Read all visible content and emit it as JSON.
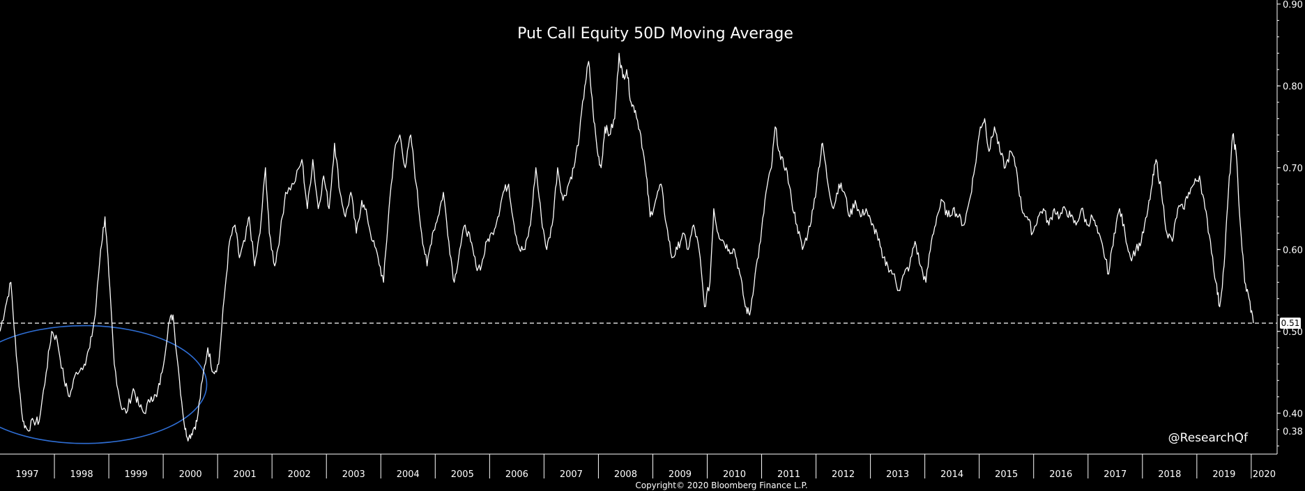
{
  "chart_data": {
    "type": "line",
    "title": "Put Call Equity 50D Moving Average",
    "x_range": [
      1997.0,
      2020.45
    ],
    "ylim": [
      0.35,
      0.905
    ],
    "y_ticks": [
      0.4,
      0.5,
      0.6,
      0.7,
      0.8,
      0.9
    ],
    "y_tick_labels": [
      "0.40",
      "0.50",
      "0.60",
      "0.70",
      "0.80",
      "0.90"
    ],
    "low_label": "0.38",
    "last_value": 0.51,
    "last_value_label": "0.51",
    "x_labels": [
      "1997",
      "1998",
      "1999",
      "2000",
      "2001",
      "2002",
      "2003",
      "2004",
      "2005",
      "2006",
      "2007",
      "2008",
      "2009",
      "2010",
      "2011",
      "2012",
      "2013",
      "2014",
      "2015",
      "2016",
      "2017",
      "2018",
      "2019",
      "2020"
    ],
    "reference_line": {
      "value": 0.51,
      "style": "dashed"
    },
    "highlight_ellipse": {
      "x_center": 1998.55,
      "y_center": 0.435,
      "x_radius": 2.25,
      "y_radius": 0.072,
      "color": "#2f6fd6"
    },
    "series": [
      {
        "line_color": "#ffffff",
        "points": [
          [
            1997.0,
            0.5
          ],
          [
            1997.1,
            0.53
          ],
          [
            1997.2,
            0.56
          ],
          [
            1997.3,
            0.47
          ],
          [
            1997.42,
            0.39
          ],
          [
            1997.5,
            0.38
          ],
          [
            1997.62,
            0.39
          ],
          [
            1997.72,
            0.39
          ],
          [
            1997.85,
            0.45
          ],
          [
            1997.95,
            0.5
          ],
          [
            1998.05,
            0.49
          ],
          [
            1998.18,
            0.44
          ],
          [
            1998.28,
            0.42
          ],
          [
            1998.4,
            0.45
          ],
          [
            1998.55,
            0.46
          ],
          [
            1998.65,
            0.48
          ],
          [
            1998.75,
            0.52
          ],
          [
            1998.85,
            0.6
          ],
          [
            1998.93,
            0.64
          ],
          [
            1999.0,
            0.57
          ],
          [
            1999.1,
            0.46
          ],
          [
            1999.22,
            0.41
          ],
          [
            1999.32,
            0.4
          ],
          [
            1999.45,
            0.43
          ],
          [
            1999.55,
            0.41
          ],
          [
            1999.65,
            0.4
          ],
          [
            1999.78,
            0.42
          ],
          [
            1999.88,
            0.42
          ],
          [
            1999.98,
            0.45
          ],
          [
            2000.1,
            0.51
          ],
          [
            2000.18,
            0.52
          ],
          [
            2000.3,
            0.44
          ],
          [
            2000.4,
            0.38
          ],
          [
            2000.47,
            0.37
          ],
          [
            2000.55,
            0.38
          ],
          [
            2000.62,
            0.39
          ],
          [
            2000.72,
            0.44
          ],
          [
            2000.82,
            0.48
          ],
          [
            2000.92,
            0.45
          ],
          [
            2001.02,
            0.46
          ],
          [
            2001.12,
            0.54
          ],
          [
            2001.22,
            0.61
          ],
          [
            2001.32,
            0.63
          ],
          [
            2001.4,
            0.59
          ],
          [
            2001.5,
            0.61
          ],
          [
            2001.58,
            0.64
          ],
          [
            2001.68,
            0.58
          ],
          [
            2001.78,
            0.62
          ],
          [
            2001.88,
            0.7
          ],
          [
            2001.95,
            0.62
          ],
          [
            2002.05,
            0.58
          ],
          [
            2002.15,
            0.62
          ],
          [
            2002.25,
            0.67
          ],
          [
            2002.4,
            0.68
          ],
          [
            2002.55,
            0.71
          ],
          [
            2002.65,
            0.65
          ],
          [
            2002.75,
            0.71
          ],
          [
            2002.85,
            0.65
          ],
          [
            2002.95,
            0.69
          ],
          [
            2003.05,
            0.65
          ],
          [
            2003.15,
            0.73
          ],
          [
            2003.25,
            0.67
          ],
          [
            2003.35,
            0.64
          ],
          [
            2003.45,
            0.67
          ],
          [
            2003.55,
            0.62
          ],
          [
            2003.65,
            0.66
          ],
          [
            2003.75,
            0.64
          ],
          [
            2003.85,
            0.61
          ],
          [
            2003.95,
            0.59
          ],
          [
            2004.05,
            0.56
          ],
          [
            2004.15,
            0.65
          ],
          [
            2004.25,
            0.72
          ],
          [
            2004.35,
            0.74
          ],
          [
            2004.45,
            0.7
          ],
          [
            2004.55,
            0.74
          ],
          [
            2004.65,
            0.68
          ],
          [
            2004.75,
            0.62
          ],
          [
            2004.85,
            0.58
          ],
          [
            2004.95,
            0.62
          ],
          [
            2005.05,
            0.64
          ],
          [
            2005.15,
            0.67
          ],
          [
            2005.25,
            0.61
          ],
          [
            2005.35,
            0.56
          ],
          [
            2005.45,
            0.6
          ],
          [
            2005.55,
            0.63
          ],
          [
            2005.65,
            0.61
          ],
          [
            2005.75,
            0.58
          ],
          [
            2005.85,
            0.58
          ],
          [
            2005.95,
            0.61
          ],
          [
            2006.05,
            0.62
          ],
          [
            2006.15,
            0.64
          ],
          [
            2006.25,
            0.67
          ],
          [
            2006.35,
            0.68
          ],
          [
            2006.45,
            0.63
          ],
          [
            2006.55,
            0.6
          ],
          [
            2006.65,
            0.6
          ],
          [
            2006.75,
            0.63
          ],
          [
            2006.85,
            0.7
          ],
          [
            2006.95,
            0.64
          ],
          [
            2007.05,
            0.6
          ],
          [
            2007.15,
            0.63
          ],
          [
            2007.25,
            0.7
          ],
          [
            2007.35,
            0.66
          ],
          [
            2007.45,
            0.68
          ],
          [
            2007.55,
            0.7
          ],
          [
            2007.65,
            0.74
          ],
          [
            2007.75,
            0.8
          ],
          [
            2007.82,
            0.83
          ],
          [
            2007.9,
            0.77
          ],
          [
            2007.98,
            0.72
          ],
          [
            2008.05,
            0.7
          ],
          [
            2008.12,
            0.75
          ],
          [
            2008.2,
            0.74
          ],
          [
            2008.3,
            0.76
          ],
          [
            2008.38,
            0.84
          ],
          [
            2008.45,
            0.81
          ],
          [
            2008.52,
            0.82
          ],
          [
            2008.6,
            0.78
          ],
          [
            2008.68,
            0.77
          ],
          [
            2008.78,
            0.74
          ],
          [
            2008.88,
            0.69
          ],
          [
            2008.95,
            0.64
          ],
          [
            2009.05,
            0.66
          ],
          [
            2009.15,
            0.68
          ],
          [
            2009.25,
            0.63
          ],
          [
            2009.35,
            0.59
          ],
          [
            2009.45,
            0.6
          ],
          [
            2009.55,
            0.62
          ],
          [
            2009.65,
            0.6
          ],
          [
            2009.75,
            0.63
          ],
          [
            2009.85,
            0.6
          ],
          [
            2009.95,
            0.53
          ],
          [
            2010.05,
            0.56
          ],
          [
            2010.12,
            0.65
          ],
          [
            2010.2,
            0.62
          ],
          [
            2010.3,
            0.61
          ],
          [
            2010.4,
            0.6
          ],
          [
            2010.5,
            0.6
          ],
          [
            2010.6,
            0.57
          ],
          [
            2010.7,
            0.53
          ],
          [
            2010.78,
            0.52
          ],
          [
            2010.88,
            0.57
          ],
          [
            2010.98,
            0.61
          ],
          [
            2011.08,
            0.67
          ],
          [
            2011.18,
            0.7
          ],
          [
            2011.25,
            0.75
          ],
          [
            2011.35,
            0.71
          ],
          [
            2011.45,
            0.7
          ],
          [
            2011.55,
            0.66
          ],
          [
            2011.65,
            0.63
          ],
          [
            2011.75,
            0.6
          ],
          [
            2011.85,
            0.62
          ],
          [
            2011.95,
            0.65
          ],
          [
            2012.05,
            0.7
          ],
          [
            2012.12,
            0.73
          ],
          [
            2012.22,
            0.68
          ],
          [
            2012.32,
            0.65
          ],
          [
            2012.42,
            0.68
          ],
          [
            2012.52,
            0.67
          ],
          [
            2012.62,
            0.64
          ],
          [
            2012.72,
            0.66
          ],
          [
            2012.82,
            0.64
          ],
          [
            2012.92,
            0.65
          ],
          [
            2013.02,
            0.63
          ],
          [
            2013.12,
            0.62
          ],
          [
            2013.22,
            0.59
          ],
          [
            2013.32,
            0.58
          ],
          [
            2013.42,
            0.57
          ],
          [
            2013.52,
            0.55
          ],
          [
            2013.62,
            0.57
          ],
          [
            2013.72,
            0.58
          ],
          [
            2013.82,
            0.61
          ],
          [
            2013.92,
            0.58
          ],
          [
            2014.02,
            0.56
          ],
          [
            2014.12,
            0.61
          ],
          [
            2014.22,
            0.64
          ],
          [
            2014.32,
            0.66
          ],
          [
            2014.42,
            0.64
          ],
          [
            2014.52,
            0.65
          ],
          [
            2014.62,
            0.64
          ],
          [
            2014.72,
            0.63
          ],
          [
            2014.82,
            0.66
          ],
          [
            2014.92,
            0.7
          ],
          [
            2015.02,
            0.75
          ],
          [
            2015.1,
            0.76
          ],
          [
            2015.18,
            0.72
          ],
          [
            2015.28,
            0.75
          ],
          [
            2015.38,
            0.72
          ],
          [
            2015.48,
            0.7
          ],
          [
            2015.58,
            0.72
          ],
          [
            2015.68,
            0.7
          ],
          [
            2015.78,
            0.65
          ],
          [
            2015.88,
            0.64
          ],
          [
            2015.98,
            0.62
          ],
          [
            2016.08,
            0.64
          ],
          [
            2016.18,
            0.65
          ],
          [
            2016.28,
            0.63
          ],
          [
            2016.38,
            0.65
          ],
          [
            2016.48,
            0.64
          ],
          [
            2016.58,
            0.65
          ],
          [
            2016.68,
            0.64
          ],
          [
            2016.78,
            0.63
          ],
          [
            2016.88,
            0.65
          ],
          [
            2016.98,
            0.63
          ],
          [
            2017.08,
            0.64
          ],
          [
            2017.18,
            0.62
          ],
          [
            2017.28,
            0.6
          ],
          [
            2017.38,
            0.57
          ],
          [
            2017.48,
            0.62
          ],
          [
            2017.58,
            0.65
          ],
          [
            2017.68,
            0.62
          ],
          [
            2017.78,
            0.59
          ],
          [
            2017.88,
            0.6
          ],
          [
            2017.98,
            0.61
          ],
          [
            2018.08,
            0.64
          ],
          [
            2018.18,
            0.68
          ],
          [
            2018.25,
            0.71
          ],
          [
            2018.35,
            0.67
          ],
          [
            2018.45,
            0.62
          ],
          [
            2018.55,
            0.61
          ],
          [
            2018.65,
            0.65
          ],
          [
            2018.75,
            0.65
          ],
          [
            2018.85,
            0.67
          ],
          [
            2018.95,
            0.68
          ],
          [
            2019.05,
            0.69
          ],
          [
            2019.15,
            0.65
          ],
          [
            2019.25,
            0.61
          ],
          [
            2019.35,
            0.56
          ],
          [
            2019.42,
            0.53
          ],
          [
            2019.5,
            0.58
          ],
          [
            2019.58,
            0.67
          ],
          [
            2019.66,
            0.74
          ],
          [
            2019.72,
            0.72
          ],
          [
            2019.8,
            0.63
          ],
          [
            2019.88,
            0.56
          ],
          [
            2019.96,
            0.54
          ],
          [
            2020.04,
            0.51
          ]
        ]
      }
    ]
  },
  "watermark": "@ResearchQf",
  "copyright": "Copyright© 2020 Bloomberg Finance L.P.",
  "colors": {
    "background": "#000000",
    "line": "#ffffff",
    "ellipse": "#2f6fd6",
    "reference_line": "#ffffff"
  }
}
